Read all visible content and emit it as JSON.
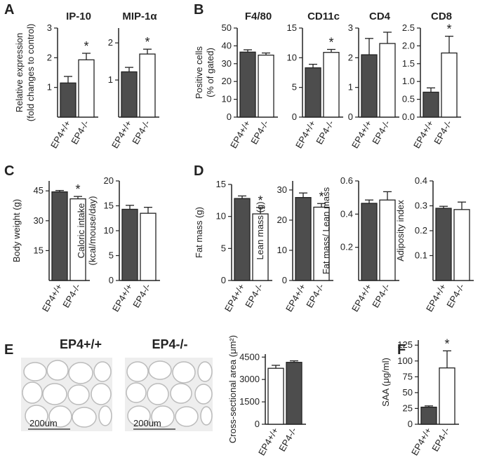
{
  "panel_labels": [
    "A",
    "B",
    "C",
    "D",
    "E",
    "F"
  ],
  "images": [
    {
      "label": "EP4+/+",
      "scale": "200um"
    },
    {
      "label": "EP4-/-",
      "scale": "200um"
    }
  ],
  "chart_data": [
    {
      "type": "bar",
      "title": "IP-10",
      "ylabel": [
        "Relative expression",
        "(fold changes to control)"
      ],
      "categories": [
        "EP4+/+",
        "EP4-/-"
      ],
      "values": [
        1.15,
        1.93
      ],
      "errors": [
        0.22,
        0.22
      ],
      "colors": [
        "#4d4d4d",
        "#ffffff"
      ],
      "ylim": [
        0,
        3
      ],
      "yticks": [
        1,
        2,
        3
      ],
      "annotation": {
        "text": "*",
        "category": 1
      }
    },
    {
      "type": "bar",
      "title": "MIP-1α",
      "categories": [
        "EP4+/+",
        "EP4-/-"
      ],
      "values": [
        1.22,
        1.7
      ],
      "errors": [
        0.12,
        0.13
      ],
      "colors": [
        "#4d4d4d",
        "#ffffff"
      ],
      "ylim": [
        0,
        2.4
      ],
      "yticks": [
        1,
        2
      ],
      "annotation": {
        "text": "*",
        "category": 1
      }
    },
    {
      "type": "bar",
      "title": "F4/80",
      "ylabel": [
        "Positive cells",
        "(% of gated)"
      ],
      "categories": [
        "EP4+/+",
        "EP4-/-"
      ],
      "values": [
        36.5,
        34.8
      ],
      "errors": [
        1.3,
        1.2
      ],
      "colors": [
        "#4d4d4d",
        "#ffffff"
      ],
      "ylim": [
        0,
        50
      ],
      "yticks": [
        0,
        10,
        20,
        30,
        40,
        50
      ]
    },
    {
      "type": "bar",
      "title": "CD11c",
      "categories": [
        "EP4+/+",
        "EP4-/-"
      ],
      "values": [
        8.3,
        10.9
      ],
      "errors": [
        0.6,
        0.5
      ],
      "colors": [
        "#4d4d4d",
        "#ffffff"
      ],
      "ylim": [
        0,
        15
      ],
      "yticks": [
        0,
        5,
        10,
        15
      ],
      "annotation": {
        "text": "*",
        "category": 1
      }
    },
    {
      "type": "bar",
      "title": "CD4",
      "categories": [
        "EP4+/+",
        "EP4-/-"
      ],
      "values": [
        2.1,
        2.48
      ],
      "errors": [
        0.55,
        0.38
      ],
      "colors": [
        "#4d4d4d",
        "#ffffff"
      ],
      "ylim": [
        0,
        3
      ],
      "yticks": [
        0,
        1,
        2,
        3
      ]
    },
    {
      "type": "bar",
      "title": "CD8",
      "categories": [
        "EP4+/+",
        "EP4-/-"
      ],
      "values": [
        0.7,
        1.8
      ],
      "errors": [
        0.12,
        0.47
      ],
      "colors": [
        "#4d4d4d",
        "#ffffff"
      ],
      "ylim": [
        0,
        2.5
      ],
      "yticks": [
        {
          "value": 0,
          "label": "0.0"
        },
        0.5,
        {
          "value": 1,
          "label": "1.0"
        },
        1.5,
        {
          "value": 2,
          "label": "2.0"
        },
        2.5
      ],
      "annotation": {
        "text": "*",
        "category": 1
      }
    },
    {
      "type": "bar",
      "ylabel": [
        "Body weight (g)"
      ],
      "categories": [
        "EP4+/+",
        "EP4-/-"
      ],
      "values": [
        44.5,
        41
      ],
      "errors": [
        0.7,
        1.2
      ],
      "colors": [
        "#4d4d4d",
        "#ffffff"
      ],
      "ylim": [
        0,
        50
      ],
      "yticks": [
        15,
        30,
        45
      ],
      "annotation": {
        "text": "*",
        "category": 1
      }
    },
    {
      "type": "bar",
      "ylabel": [
        "Caloric intake",
        "(kcal/mouse/day)"
      ],
      "categories": [
        "EP4+/+",
        "EP4-/-"
      ],
      "values": [
        14.3,
        13.5
      ],
      "errors": [
        0.8,
        1.2
      ],
      "colors": [
        "#4d4d4d",
        "#ffffff"
      ],
      "ylim": [
        0,
        20
      ],
      "yticks": [
        0,
        5,
        10,
        15,
        20
      ]
    },
    {
      "type": "bar",
      "ylabel": [
        "Fat mass (g)"
      ],
      "categories": [
        "EP4+/+",
        "EP4-/-"
      ],
      "values": [
        12.8,
        10.4
      ],
      "errors": [
        0.4,
        1.0
      ],
      "colors": [
        "#4d4d4d",
        "#ffffff"
      ],
      "ylim": [
        0,
        15
      ],
      "yticks": [
        0,
        5,
        10,
        15
      ],
      "annotation": {
        "text": "*",
        "category": 1
      }
    },
    {
      "type": "bar",
      "ylabel": [
        "Lean mass (g)"
      ],
      "categories": [
        "EP4+/+",
        "EP4-/-"
      ],
      "values": [
        27.5,
        24.3
      ],
      "errors": [
        1.5,
        1.2
      ],
      "colors": [
        "#4d4d4d",
        "#ffffff"
      ],
      "ylim": [
        0,
        33
      ],
      "yticks": [
        0,
        10,
        20,
        30
      ],
      "annotation": {
        "text": "*",
        "category": 1
      }
    },
    {
      "type": "bar",
      "ylabel": [
        "Fat mass/ Lean mass"
      ],
      "categories": [
        "EP4+/+",
        "EP4-/-"
      ],
      "values": [
        0.465,
        0.485
      ],
      "errors": [
        0.02,
        0.05
      ],
      "colors": [
        "#4d4d4d",
        "#ffffff"
      ],
      "ylim": [
        0,
        0.6
      ],
      "yticks": [
        0.2,
        0.4,
        0.6
      ]
    },
    {
      "type": "bar",
      "ylabel": [
        "Adiposity index"
      ],
      "categories": [
        "EP4+/+",
        "EP4-/-"
      ],
      "values": [
        0.29,
        0.285
      ],
      "errors": [
        0.008,
        0.03
      ],
      "colors": [
        "#4d4d4d",
        "#ffffff"
      ],
      "ylim": [
        0,
        0.4
      ],
      "yticks": [
        0.1,
        0.2,
        0.3,
        0.4
      ]
    },
    {
      "type": "bar",
      "ylabel": [
        "Cross-sectional area (μm²)"
      ],
      "categories": [
        "EP4+/+",
        "EP4-/-"
      ],
      "values": [
        3750,
        4150
      ],
      "errors": [
        200,
        100
      ],
      "colors": [
        "#ffffff",
        "#4d4d4d"
      ],
      "ylim": [
        0,
        4700
      ],
      "yticks": [
        0,
        1500,
        3000,
        4500
      ]
    },
    {
      "type": "bar",
      "ylabel": [
        "SAA (μg/ml)"
      ],
      "categories": [
        "EP4+/+",
        "EP4-/-"
      ],
      "values": [
        27,
        89
      ],
      "errors": [
        2,
        27
      ],
      "colors": [
        "#4d4d4d",
        "#ffffff"
      ],
      "ylim": [
        0,
        133
      ],
      "yticks": [
        0,
        25,
        50,
        75,
        100,
        125
      ],
      "annotation": {
        "text": "*",
        "category": 1
      }
    }
  ]
}
